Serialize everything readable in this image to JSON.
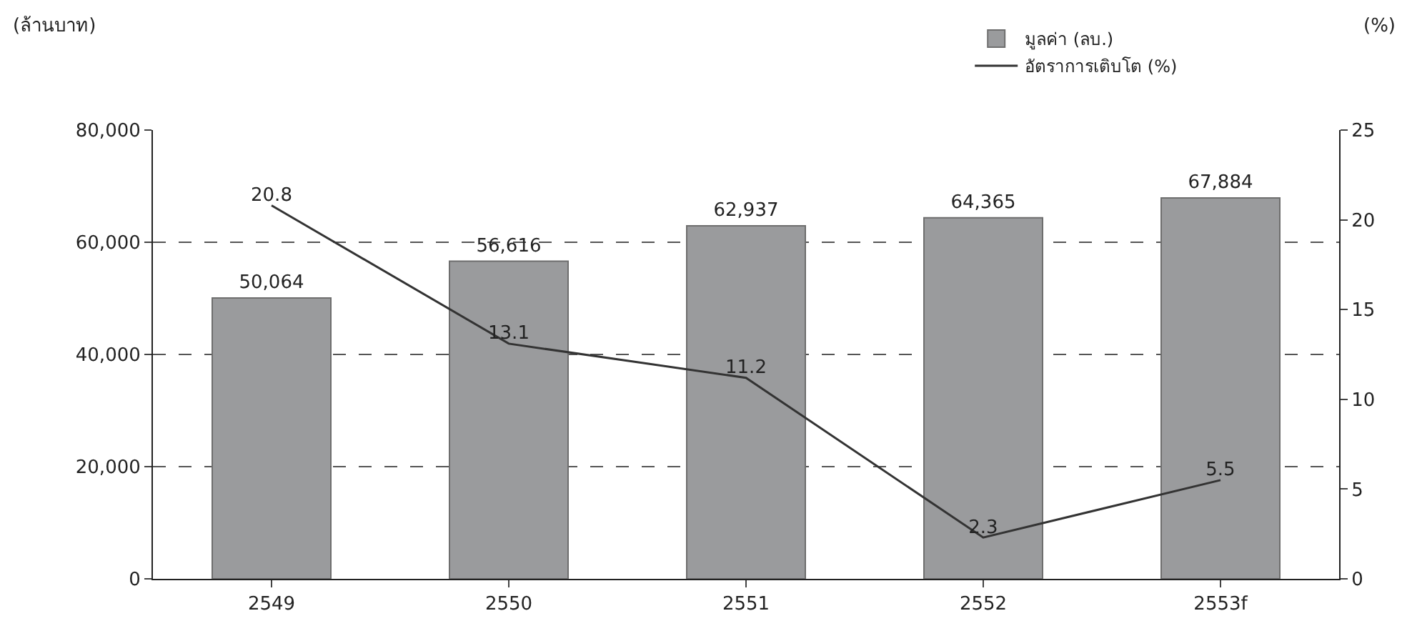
{
  "chart_data": {
    "type": "bar",
    "ylabel": "(ล้านบาท)",
    "y2label": "(%)",
    "categories": [
      "2549",
      "2550",
      "2551",
      "2552",
      "2553f"
    ],
    "series": [
      {
        "name": "มูลค่า (ลบ.)",
        "color": "#9a9b9d",
        "values": [
          50064,
          56616,
          62937,
          64365,
          67884
        ],
        "value_labels": [
          "50,064",
          "56,616",
          "62,937",
          "64,365",
          "67,884"
        ]
      },
      {
        "name": "อัตราการเติบโต (%)",
        "type": "line",
        "axis": "y2",
        "color": "#333333",
        "values": [
          20.8,
          13.1,
          11.2,
          2.3,
          5.5
        ],
        "value_labels": [
          "20.8",
          "13.1",
          "11.2",
          "2.3",
          "5.5"
        ]
      }
    ],
    "ylim": [
      0,
      80000
    ],
    "yticks": [
      {
        "value": 0,
        "label": "0"
      },
      {
        "value": 20000,
        "label": "20,000"
      },
      {
        "value": 40000,
        "label": "40,000"
      },
      {
        "value": 60000,
        "label": "60,000"
      },
      {
        "value": 80000,
        "label": "80,000"
      }
    ],
    "y2lim": [
      0,
      25
    ],
    "y2ticks": [
      0,
      5,
      10,
      15,
      20,
      25
    ],
    "grid": "y",
    "legend": "top right",
    "marker": "none",
    "line_style": "solid"
  }
}
